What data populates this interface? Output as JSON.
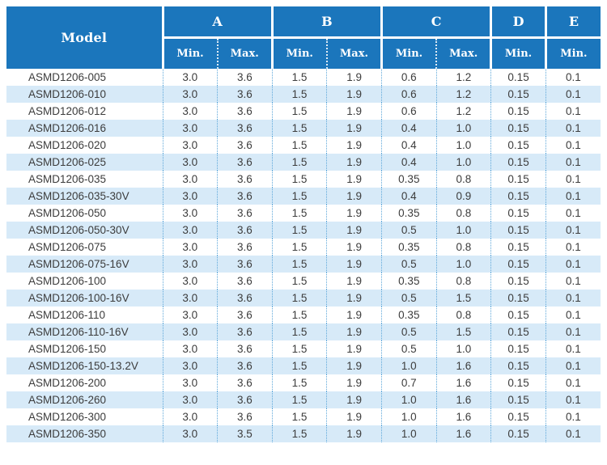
{
  "colors": {
    "header_background": "#1b76bc",
    "header_text": "#ffffff",
    "row_alternate": "#d7eaf8",
    "row_base": "#ffffff",
    "column_divider_dotted": "#5fa8da",
    "body_text": "#3c3c3c"
  },
  "table": {
    "header": {
      "model": "Model",
      "groups": [
        {
          "label": "A",
          "subs": [
            "Min.",
            "Max."
          ]
        },
        {
          "label": "B",
          "subs": [
            "Min.",
            "Max."
          ]
        },
        {
          "label": "C",
          "subs": [
            "Min.",
            "Max."
          ]
        },
        {
          "label": "D",
          "subs": [
            "Min."
          ]
        },
        {
          "label": "E",
          "subs": [
            "Min."
          ]
        }
      ]
    },
    "rows": [
      {
        "model": "ASMD1206-005",
        "values": [
          "3.0",
          "3.6",
          "1.5",
          "1.9",
          "0.6",
          "1.2",
          "0.15",
          "0.1"
        ]
      },
      {
        "model": "ASMD1206-010",
        "values": [
          "3.0",
          "3.6",
          "1.5",
          "1.9",
          "0.6",
          "1.2",
          "0.15",
          "0.1"
        ]
      },
      {
        "model": "ASMD1206-012",
        "values": [
          "3.0",
          "3.6",
          "1.5",
          "1.9",
          "0.6",
          "1.2",
          "0.15",
          "0.1"
        ]
      },
      {
        "model": "ASMD1206-016",
        "values": [
          "3.0",
          "3.6",
          "1.5",
          "1.9",
          "0.4",
          "1.0",
          "0.15",
          "0.1"
        ]
      },
      {
        "model": "ASMD1206-020",
        "values": [
          "3.0",
          "3.6",
          "1.5",
          "1.9",
          "0.4",
          "1.0",
          "0.15",
          "0.1"
        ]
      },
      {
        "model": "ASMD1206-025",
        "values": [
          "3.0",
          "3.6",
          "1.5",
          "1.9",
          "0.4",
          "1.0",
          "0.15",
          "0.1"
        ]
      },
      {
        "model": "ASMD1206-035",
        "values": [
          "3.0",
          "3.6",
          "1.5",
          "1.9",
          "0.35",
          "0.8",
          "0.15",
          "0.1"
        ]
      },
      {
        "model": "ASMD1206-035-30V",
        "values": [
          "3.0",
          "3.6",
          "1.5",
          "1.9",
          "0.4",
          "0.9",
          "0.15",
          "0.1"
        ]
      },
      {
        "model": "ASMD1206-050",
        "values": [
          "3.0",
          "3.6",
          "1.5",
          "1.9",
          "0.35",
          "0.8",
          "0.15",
          "0.1"
        ]
      },
      {
        "model": "ASMD1206-050-30V",
        "values": [
          "3.0",
          "3.6",
          "1.5",
          "1.9",
          "0.5",
          "1.0",
          "0.15",
          "0.1"
        ]
      },
      {
        "model": "ASMD1206-075",
        "values": [
          "3.0",
          "3.6",
          "1.5",
          "1.9",
          "0.35",
          "0.8",
          "0.15",
          "0.1"
        ]
      },
      {
        "model": "ASMD1206-075-16V",
        "values": [
          "3.0",
          "3.6",
          "1.5",
          "1.9",
          "0.5",
          "1.0",
          "0.15",
          "0.1"
        ]
      },
      {
        "model": "ASMD1206-100",
        "values": [
          "3.0",
          "3.6",
          "1.5",
          "1.9",
          "0.35",
          "0.8",
          "0.15",
          "0.1"
        ]
      },
      {
        "model": "ASMD1206-100-16V",
        "values": [
          "3.0",
          "3.6",
          "1.5",
          "1.9",
          "0.5",
          "1.5",
          "0.15",
          "0.1"
        ]
      },
      {
        "model": "ASMD1206-110",
        "values": [
          "3.0",
          "3.6",
          "1.5",
          "1.9",
          "0.35",
          "0.8",
          "0.15",
          "0.1"
        ]
      },
      {
        "model": "ASMD1206-110-16V",
        "values": [
          "3.0",
          "3.6",
          "1.5",
          "1.9",
          "0.5",
          "1.5",
          "0.15",
          "0.1"
        ]
      },
      {
        "model": "ASMD1206-150",
        "values": [
          "3.0",
          "3.6",
          "1.5",
          "1.9",
          "0.5",
          "1.0",
          "0.15",
          "0.1"
        ]
      },
      {
        "model": "ASMD1206-150-13.2V",
        "values": [
          "3.0",
          "3.6",
          "1.5",
          "1.9",
          "1.0",
          "1.6",
          "0.15",
          "0.1"
        ]
      },
      {
        "model": "ASMD1206-200",
        "values": [
          "3.0",
          "3.6",
          "1.5",
          "1.9",
          "0.7",
          "1.6",
          "0.15",
          "0.1"
        ]
      },
      {
        "model": "ASMD1206-260",
        "values": [
          "3.0",
          "3.6",
          "1.5",
          "1.9",
          "1.0",
          "1.6",
          "0.15",
          "0.1"
        ]
      },
      {
        "model": "ASMD1206-300",
        "values": [
          "3.0",
          "3.6",
          "1.5",
          "1.9",
          "1.0",
          "1.6",
          "0.15",
          "0.1"
        ]
      },
      {
        "model": "ASMD1206-350",
        "values": [
          "3.0",
          "3.5",
          "1.5",
          "1.9",
          "1.0",
          "1.6",
          "0.15",
          "0.1"
        ]
      }
    ]
  }
}
